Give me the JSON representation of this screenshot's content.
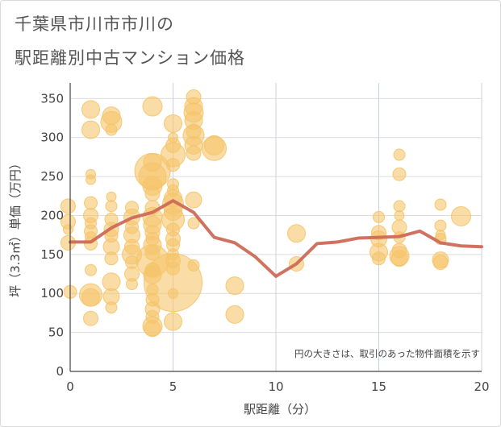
{
  "title_line1": "千葉県市川市市川の",
  "title_line2": "駅距離別中古マンション価格",
  "chart_data": {
    "type": "scatter",
    "title": "千葉県市川市市川の駅距離別中古マンション価格",
    "xlabel": "駅距離（分）",
    "ylabel": "坪（3.3㎡）単価（万円）",
    "xlim": [
      0,
      20
    ],
    "ylim": [
      0,
      370
    ],
    "xticks": [
      0,
      5,
      10,
      15,
      20
    ],
    "yticks": [
      0,
      50,
      100,
      150,
      200,
      250,
      300,
      350
    ],
    "grid": true,
    "note": "円の大きさは、取引のあった物件面積を示す",
    "bubble_color": "#f5c46a",
    "line_color": "#cd6a57",
    "bubbles": [
      {
        "x": 0,
        "y": 102,
        "s": 8
      },
      {
        "x": 1,
        "y": 336,
        "s": 11
      },
      {
        "x": 1,
        "y": 310,
        "s": 11
      },
      {
        "x": 1,
        "y": 253,
        "s": 6
      },
      {
        "x": 1,
        "y": 246,
        "s": 6
      },
      {
        "x": 1,
        "y": 216,
        "s": 8
      },
      {
        "x": 1,
        "y": 200,
        "s": 9
      },
      {
        "x": 1,
        "y": 190,
        "s": 7
      },
      {
        "x": 1,
        "y": 180,
        "s": 8
      },
      {
        "x": 1,
        "y": 172,
        "s": 7
      },
      {
        "x": 1,
        "y": 164,
        "s": 8
      },
      {
        "x": 1,
        "y": 130,
        "s": 7
      },
      {
        "x": 1,
        "y": 98,
        "s": 14
      },
      {
        "x": 1,
        "y": 95,
        "s": 11
      },
      {
        "x": 1,
        "y": 68,
        "s": 9
      },
      {
        "x": -0.1,
        "y": 212,
        "s": 9
      },
      {
        "x": -0.1,
        "y": 192,
        "s": 9
      },
      {
        "x": -0.1,
        "y": 182,
        "s": 6
      },
      {
        "x": -0.1,
        "y": 165,
        "s": 9
      },
      {
        "x": 2,
        "y": 328,
        "s": 11
      },
      {
        "x": 2,
        "y": 320,
        "s": 13
      },
      {
        "x": 2,
        "y": 310,
        "s": 7
      },
      {
        "x": 2,
        "y": 224,
        "s": 6
      },
      {
        "x": 2,
        "y": 212,
        "s": 7
      },
      {
        "x": 2,
        "y": 195,
        "s": 8
      },
      {
        "x": 2,
        "y": 182,
        "s": 9
      },
      {
        "x": 2,
        "y": 174,
        "s": 8
      },
      {
        "x": 2,
        "y": 160,
        "s": 10
      },
      {
        "x": 2,
        "y": 145,
        "s": 8
      },
      {
        "x": 2,
        "y": 115,
        "s": 11
      },
      {
        "x": 2,
        "y": 96,
        "s": 10
      },
      {
        "x": 2,
        "y": 82,
        "s": 7
      },
      {
        "x": 3,
        "y": 210,
        "s": 8
      },
      {
        "x": 3,
        "y": 198,
        "s": 10
      },
      {
        "x": 3,
        "y": 185,
        "s": 8
      },
      {
        "x": 3,
        "y": 175,
        "s": 10
      },
      {
        "x": 3,
        "y": 160,
        "s": 9
      },
      {
        "x": 3,
        "y": 150,
        "s": 12
      },
      {
        "x": 3,
        "y": 140,
        "s": 8
      },
      {
        "x": 3,
        "y": 125,
        "s": 9
      },
      {
        "x": 3,
        "y": 112,
        "s": 7
      },
      {
        "x": 4,
        "y": 340,
        "s": 12
      },
      {
        "x": 4,
        "y": 268,
        "s": 11
      },
      {
        "x": 4,
        "y": 257,
        "s": 22
      },
      {
        "x": 4,
        "y": 250,
        "s": 17
      },
      {
        "x": 4,
        "y": 238,
        "s": 12
      },
      {
        "x": 4,
        "y": 228,
        "s": 9
      },
      {
        "x": 4,
        "y": 210,
        "s": 9
      },
      {
        "x": 4,
        "y": 198,
        "s": 12
      },
      {
        "x": 4,
        "y": 188,
        "s": 11
      },
      {
        "x": 4,
        "y": 178,
        "s": 9
      },
      {
        "x": 4,
        "y": 170,
        "s": 8
      },
      {
        "x": 4,
        "y": 162,
        "s": 11
      },
      {
        "x": 4,
        "y": 152,
        "s": 9
      },
      {
        "x": 4,
        "y": 142,
        "s": 20
      },
      {
        "x": 4,
        "y": 130,
        "s": 9
      },
      {
        "x": 4,
        "y": 124,
        "s": 11
      },
      {
        "x": 4,
        "y": 105,
        "s": 7
      },
      {
        "x": 4,
        "y": 92,
        "s": 8
      },
      {
        "x": 4,
        "y": 80,
        "s": 9
      },
      {
        "x": 4,
        "y": 70,
        "s": 8
      },
      {
        "x": 4,
        "y": 58,
        "s": 12
      },
      {
        "x": 4,
        "y": 55,
        "s": 10
      },
      {
        "x": 5,
        "y": 318,
        "s": 11
      },
      {
        "x": 5,
        "y": 300,
        "s": 6
      },
      {
        "x": 5,
        "y": 290,
        "s": 9
      },
      {
        "x": 5,
        "y": 278,
        "s": 15
      },
      {
        "x": 5,
        "y": 265,
        "s": 8
      },
      {
        "x": 5,
        "y": 240,
        "s": 7
      },
      {
        "x": 5,
        "y": 232,
        "s": 7
      },
      {
        "x": 5,
        "y": 222,
        "s": 11
      },
      {
        "x": 5,
        "y": 215,
        "s": 13
      },
      {
        "x": 5,
        "y": 205,
        "s": 11
      },
      {
        "x": 5,
        "y": 195,
        "s": 14
      },
      {
        "x": 5,
        "y": 182,
        "s": 8
      },
      {
        "x": 5,
        "y": 170,
        "s": 9
      },
      {
        "x": 5,
        "y": 162,
        "s": 8
      },
      {
        "x": 5,
        "y": 150,
        "s": 7
      },
      {
        "x": 5,
        "y": 142,
        "s": 9
      },
      {
        "x": 5,
        "y": 132,
        "s": 8
      },
      {
        "x": 5,
        "y": 114,
        "s": 36
      },
      {
        "x": 5,
        "y": 100,
        "s": 6
      },
      {
        "x": 5,
        "y": 64,
        "s": 11
      },
      {
        "x": 6,
        "y": 352,
        "s": 9
      },
      {
        "x": 6,
        "y": 340,
        "s": 11
      },
      {
        "x": 6,
        "y": 332,
        "s": 12
      },
      {
        "x": 6,
        "y": 322,
        "s": 11
      },
      {
        "x": 6,
        "y": 308,
        "s": 9
      },
      {
        "x": 6,
        "y": 303,
        "s": 13
      },
      {
        "x": 6,
        "y": 290,
        "s": 11
      },
      {
        "x": 6,
        "y": 280,
        "s": 9
      },
      {
        "x": 6,
        "y": 220,
        "s": 10
      },
      {
        "x": 6,
        "y": 190,
        "s": 7
      },
      {
        "x": 6,
        "y": 136,
        "s": 7
      },
      {
        "x": 7,
        "y": 290,
        "s": 12
      },
      {
        "x": 7,
        "y": 286,
        "s": 15
      },
      {
        "x": 8,
        "y": 110,
        "s": 11
      },
      {
        "x": 8,
        "y": 73,
        "s": 11
      },
      {
        "x": 11,
        "y": 177,
        "s": 11
      },
      {
        "x": 11,
        "y": 138,
        "s": 9
      },
      {
        "x": 15,
        "y": 198,
        "s": 7
      },
      {
        "x": 15,
        "y": 178,
        "s": 9
      },
      {
        "x": 15,
        "y": 170,
        "s": 10
      },
      {
        "x": 15,
        "y": 153,
        "s": 11
      },
      {
        "x": 15,
        "y": 145,
        "s": 8
      },
      {
        "x": 16,
        "y": 278,
        "s": 7
      },
      {
        "x": 16,
        "y": 253,
        "s": 8
      },
      {
        "x": 16,
        "y": 212,
        "s": 7
      },
      {
        "x": 16,
        "y": 200,
        "s": 6
      },
      {
        "x": 16,
        "y": 185,
        "s": 9
      },
      {
        "x": 16,
        "y": 172,
        "s": 7
      },
      {
        "x": 16,
        "y": 155,
        "s": 9
      },
      {
        "x": 16,
        "y": 148,
        "s": 12
      },
      {
        "x": 16,
        "y": 145,
        "s": 10
      },
      {
        "x": 18,
        "y": 214,
        "s": 7
      },
      {
        "x": 18,
        "y": 187,
        "s": 7
      },
      {
        "x": 18,
        "y": 175,
        "s": 6
      },
      {
        "x": 18,
        "y": 170,
        "s": 7
      },
      {
        "x": 18,
        "y": 143,
        "s": 10
      },
      {
        "x": 18,
        "y": 140,
        "s": 9
      },
      {
        "x": 19,
        "y": 199,
        "s": 12
      }
    ],
    "line": {
      "x": [
        0,
        1,
        2,
        3,
        4,
        5,
        6,
        7,
        8,
        9,
        10,
        11,
        12,
        13,
        14,
        15,
        16,
        17,
        18,
        19,
        20
      ],
      "y": [
        166,
        166,
        184,
        197,
        204,
        219,
        204,
        172,
        165,
        147,
        122,
        138,
        164,
        166,
        171,
        172,
        173,
        180,
        165,
        161,
        160
      ]
    }
  }
}
